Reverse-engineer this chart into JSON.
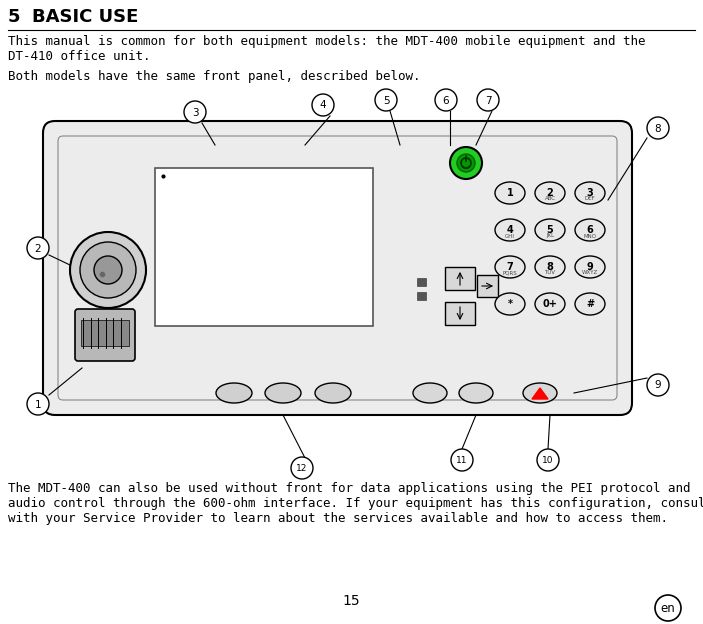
{
  "title_num": "5",
  "title_text": "BASIC USE",
  "para1_line1": "This manual is common for both equipment models: the MDT-400 mobile equipment and the",
  "para1_line2": "DT-410 office unit.",
  "para2": "Both models have the same front panel, described below.",
  "para3_line1": "The MDT-400 can also be used without front for data applications using the PEI protocol and",
  "para3_line2": "audio control through the 600-ohm interface. If your equipment has this configuration, consult",
  "para3_line3": "with your Service Provider to learn about the services available and how to access them.",
  "page_number": "15",
  "lang_badge": "en",
  "bg_color": "#ffffff",
  "text_color": "#000000",
  "fig_width": 7.03,
  "fig_height": 6.24,
  "dpi": 100
}
